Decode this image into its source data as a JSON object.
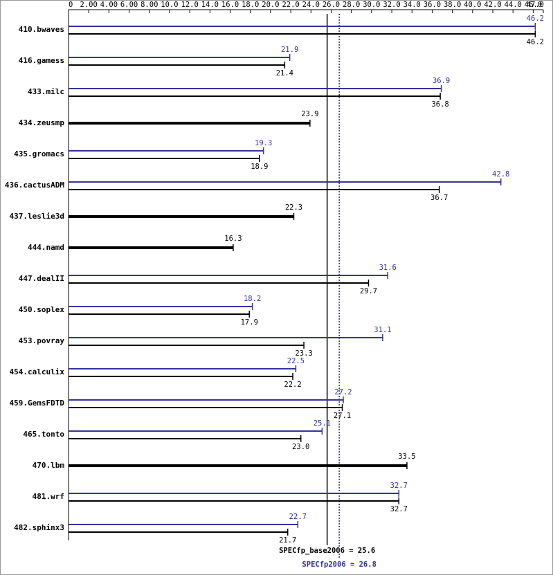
{
  "chart_data": {
    "type": "bar",
    "orientation": "horizontal",
    "categories": [
      "410.bwaves",
      "416.gamess",
      "433.milc",
      "434.zeusmp",
      "435.gromacs",
      "436.cactusADM",
      "437.leslie3d",
      "444.namd",
      "447.dealII",
      "450.soplex",
      "453.povray",
      "454.calculix",
      "459.GemsFDTD",
      "465.tonto",
      "470.lbm",
      "481.wrf",
      "482.sphinx3"
    ],
    "series": [
      {
        "color": "#333399",
        "values": [
          46.2,
          21.9,
          36.9,
          null,
          19.3,
          42.8,
          null,
          null,
          31.6,
          18.2,
          31.1,
          22.5,
          27.2,
          25.1,
          null,
          32.7,
          22.7
        ]
      },
      {
        "color": "#000000",
        "values": [
          46.2,
          21.4,
          36.8,
          23.9,
          18.9,
          36.7,
          22.3,
          16.3,
          29.7,
          17.9,
          23.3,
          22.2,
          27.1,
          23.0,
          33.5,
          32.7,
          21.7
        ],
        "value_labels": [
          "46.2",
          "21.4",
          "36.8",
          "23.9",
          "18.9",
          "36.7",
          "22.3",
          "16.3",
          "29.7",
          "17.9",
          "23.3",
          "22.2",
          "27.1",
          "23.0",
          "33.5",
          "32.7",
          "21.7"
        ]
      }
    ],
    "xlim": [
      0,
      47
    ],
    "xticks": [
      0,
      {
        "value": 2,
        "label": "2.00"
      },
      {
        "value": 4,
        "label": "4.00"
      },
      {
        "value": 6,
        "label": "6.00"
      },
      {
        "value": 8,
        "label": "8.00"
      },
      {
        "value": 10,
        "label": "10.0"
      },
      {
        "value": 12,
        "label": "12.0"
      },
      {
        "value": 14,
        "label": "14.0"
      },
      {
        "value": 16,
        "label": "16.0"
      },
      {
        "value": 18,
        "label": "18.0"
      },
      {
        "value": 20,
        "label": "20.0"
      },
      {
        "value": 22,
        "label": "22.0"
      },
      {
        "value": 24,
        "label": "24.0"
      },
      {
        "value": 26,
        "label": "26.0"
      },
      {
        "value": 28,
        "label": "28.0"
      },
      {
        "value": 30,
        "label": "30.0"
      },
      {
        "value": 32,
        "label": "32.0"
      },
      {
        "value": 34,
        "label": "34.0"
      },
      {
        "value": 36,
        "label": "36.0"
      },
      {
        "value": 38,
        "label": "38.0"
      },
      {
        "value": 40,
        "label": "40.0"
      },
      {
        "value": 42,
        "label": "42.0"
      },
      {
        "value": 44,
        "label": "44.0"
      },
      {
        "value": 46,
        "label": "46.0"
      },
      {
        "value": 47,
        "label": "47.0"
      }
    ],
    "reference_lines": [
      {
        "label": "SPECfp_base2006 = 25.6",
        "value": 25.6,
        "color": "#000000",
        "style": "solid"
      },
      {
        "label": "SPECfp2006 = 26.8",
        "value": 26.8,
        "color": "#333399",
        "style": "dotted"
      }
    ]
  }
}
